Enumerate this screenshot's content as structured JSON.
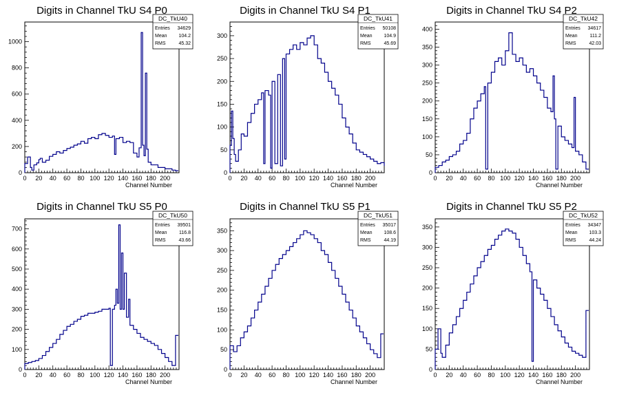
{
  "chart_data": [
    {
      "type": "histogram",
      "title": "Digits in Channel TkU S4 P0",
      "xlabel": "Channel Number",
      "xlim": [
        0,
        220
      ],
      "ylim": [
        0,
        1150
      ],
      "xticks": [
        0,
        20,
        40,
        60,
        80,
        100,
        120,
        140,
        160,
        180,
        200
      ],
      "yticks": [
        0,
        200,
        400,
        600,
        800,
        1000
      ],
      "stats": {
        "name": "DC_TkU40",
        "entries": "34629",
        "mean": "104.2",
        "rms": "45.32"
      },
      "points": [
        [
          0,
          70
        ],
        [
          4,
          120
        ],
        [
          8,
          40
        ],
        [
          10,
          20
        ],
        [
          13,
          60
        ],
        [
          17,
          75
        ],
        [
          20,
          100
        ],
        [
          22,
          110
        ],
        [
          25,
          80
        ],
        [
          30,
          95
        ],
        [
          35,
          125
        ],
        [
          40,
          140
        ],
        [
          45,
          160
        ],
        [
          50,
          150
        ],
        [
          55,
          170
        ],
        [
          60,
          185
        ],
        [
          65,
          195
        ],
        [
          70,
          210
        ],
        [
          75,
          220
        ],
        [
          80,
          240
        ],
        [
          85,
          225
        ],
        [
          90,
          260
        ],
        [
          95,
          270
        ],
        [
          100,
          260
        ],
        [
          105,
          290
        ],
        [
          110,
          300
        ],
        [
          115,
          285
        ],
        [
          120,
          270
        ],
        [
          125,
          280
        ],
        [
          128,
          140
        ],
        [
          130,
          260
        ],
        [
          135,
          270
        ],
        [
          140,
          230
        ],
        [
          145,
          240
        ],
        [
          150,
          230
        ],
        [
          155,
          150
        ],
        [
          160,
          120
        ],
        [
          163,
          190
        ],
        [
          166,
          1070
        ],
        [
          168,
          210
        ],
        [
          170,
          130
        ],
        [
          172,
          760
        ],
        [
          174,
          180
        ],
        [
          176,
          80
        ],
        [
          180,
          60
        ],
        [
          190,
          40
        ],
        [
          200,
          30
        ],
        [
          210,
          20
        ],
        [
          215,
          15
        ]
      ],
      "color": "#00008b"
    },
    {
      "type": "histogram",
      "title": "Digits in Channel TkU S4 P1",
      "xlabel": "Channel Number",
      "xlim": [
        0,
        220
      ],
      "ylim": [
        0,
        330
      ],
      "xticks": [
        0,
        20,
        40,
        60,
        80,
        100,
        120,
        140,
        160,
        180,
        200
      ],
      "yticks": [
        0,
        50,
        100,
        150,
        200,
        250,
        300
      ],
      "stats": {
        "name": "DC_TkU41",
        "entries": "50108",
        "mean": "104.9",
        "rms": "45.69"
      },
      "points": [
        [
          0,
          60
        ],
        [
          2,
          135
        ],
        [
          4,
          75
        ],
        [
          6,
          40
        ],
        [
          8,
          25
        ],
        [
          12,
          50
        ],
        [
          16,
          85
        ],
        [
          20,
          80
        ],
        [
          25,
          110
        ],
        [
          30,
          130
        ],
        [
          35,
          150
        ],
        [
          40,
          160
        ],
        [
          45,
          175
        ],
        [
          48,
          20
        ],
        [
          50,
          180
        ],
        [
          55,
          170
        ],
        [
          58,
          10
        ],
        [
          60,
          200
        ],
        [
          64,
          20
        ],
        [
          68,
          215
        ],
        [
          72,
          15
        ],
        [
          75,
          250
        ],
        [
          78,
          30
        ],
        [
          80,
          260
        ],
        [
          85,
          270
        ],
        [
          90,
          280
        ],
        [
          95,
          270
        ],
        [
          100,
          285
        ],
        [
          105,
          280
        ],
        [
          110,
          295
        ],
        [
          115,
          300
        ],
        [
          120,
          280
        ],
        [
          125,
          250
        ],
        [
          130,
          240
        ],
        [
          135,
          220
        ],
        [
          140,
          200
        ],
        [
          145,
          185
        ],
        [
          150,
          170
        ],
        [
          155,
          150
        ],
        [
          160,
          120
        ],
        [
          165,
          100
        ],
        [
          170,
          85
        ],
        [
          175,
          65
        ],
        [
          180,
          50
        ],
        [
          185,
          45
        ],
        [
          190,
          40
        ],
        [
          195,
          35
        ],
        [
          200,
          30
        ],
        [
          205,
          25
        ],
        [
          210,
          20
        ],
        [
          215,
          22
        ],
        [
          220,
          15
        ]
      ],
      "color": "#00008b"
    },
    {
      "type": "histogram",
      "title": "Digits in Channel TkU S4 P2",
      "xlabel": "Channel Number",
      "xlim": [
        0,
        220
      ],
      "ylim": [
        0,
        420
      ],
      "xticks": [
        0,
        20,
        40,
        60,
        80,
        100,
        120,
        140,
        160,
        180,
        200
      ],
      "yticks": [
        0,
        50,
        100,
        150,
        200,
        250,
        300,
        350,
        400
      ],
      "stats": {
        "name": "DC_TkU42",
        "entries": "34617",
        "mean": "111.2",
        "rms": "42.03"
      },
      "points": [
        [
          0,
          15
        ],
        [
          5,
          20
        ],
        [
          10,
          30
        ],
        [
          15,
          35
        ],
        [
          20,
          45
        ],
        [
          25,
          50
        ],
        [
          30,
          60
        ],
        [
          35,
          80
        ],
        [
          40,
          90
        ],
        [
          45,
          110
        ],
        [
          50,
          150
        ],
        [
          55,
          180
        ],
        [
          60,
          200
        ],
        [
          65,
          220
        ],
        [
          70,
          240
        ],
        [
          72,
          10
        ],
        [
          75,
          250
        ],
        [
          80,
          280
        ],
        [
          85,
          310
        ],
        [
          90,
          320
        ],
        [
          95,
          300
        ],
        [
          100,
          340
        ],
        [
          105,
          390
        ],
        [
          110,
          330
        ],
        [
          115,
          310
        ],
        [
          120,
          320
        ],
        [
          125,
          300
        ],
        [
          130,
          280
        ],
        [
          135,
          290
        ],
        [
          140,
          270
        ],
        [
          145,
          250
        ],
        [
          150,
          230
        ],
        [
          155,
          210
        ],
        [
          160,
          180
        ],
        [
          165,
          170
        ],
        [
          168,
          270
        ],
        [
          170,
          150
        ],
        [
          172,
          10
        ],
        [
          175,
          130
        ],
        [
          180,
          100
        ],
        [
          185,
          90
        ],
        [
          190,
          80
        ],
        [
          195,
          70
        ],
        [
          198,
          210
        ],
        [
          200,
          60
        ],
        [
          205,
          50
        ],
        [
          210,
          30
        ],
        [
          215,
          10
        ]
      ],
      "color": "#00008b"
    },
    {
      "type": "histogram",
      "title": "Digits in Channel TkU S5 P0",
      "xlabel": "Channel Number",
      "xlim": [
        0,
        220
      ],
      "ylim": [
        0,
        750
      ],
      "xticks": [
        0,
        20,
        40,
        60,
        80,
        100,
        120,
        140,
        160,
        180,
        200
      ],
      "yticks": [
        0,
        100,
        200,
        300,
        400,
        500,
        600,
        700
      ],
      "stats": {
        "name": "DC_TkU50",
        "entries": "39501",
        "mean": "116.8",
        "rms": "43.66"
      },
      "points": [
        [
          0,
          30
        ],
        [
          5,
          35
        ],
        [
          10,
          40
        ],
        [
          15,
          45
        ],
        [
          20,
          55
        ],
        [
          25,
          70
        ],
        [
          30,
          90
        ],
        [
          35,
          110
        ],
        [
          40,
          130
        ],
        [
          45,
          150
        ],
        [
          50,
          175
        ],
        [
          55,
          195
        ],
        [
          60,
          215
        ],
        [
          65,
          225
        ],
        [
          70,
          240
        ],
        [
          75,
          250
        ],
        [
          80,
          265
        ],
        [
          85,
          270
        ],
        [
          90,
          280
        ],
        [
          95,
          280
        ],
        [
          100,
          285
        ],
        [
          105,
          290
        ],
        [
          110,
          300
        ],
        [
          115,
          300
        ],
        [
          120,
          305
        ],
        [
          122,
          20
        ],
        [
          125,
          300
        ],
        [
          128,
          320
        ],
        [
          130,
          400
        ],
        [
          132,
          330
        ],
        [
          134,
          720
        ],
        [
          136,
          300
        ],
        [
          138,
          580
        ],
        [
          140,
          300
        ],
        [
          142,
          480
        ],
        [
          145,
          260
        ],
        [
          148,
          350
        ],
        [
          150,
          220
        ],
        [
          155,
          200
        ],
        [
          160,
          180
        ],
        [
          165,
          160
        ],
        [
          170,
          150
        ],
        [
          175,
          140
        ],
        [
          180,
          130
        ],
        [
          185,
          120
        ],
        [
          190,
          100
        ],
        [
          195,
          80
        ],
        [
          200,
          60
        ],
        [
          205,
          40
        ],
        [
          210,
          20
        ],
        [
          215,
          170
        ]
      ],
      "color": "#00008b"
    },
    {
      "type": "histogram",
      "title": "Digits in Channel TkU S5 P1",
      "xlabel": "Channel Number",
      "xlim": [
        0,
        220
      ],
      "ylim": [
        0,
        380
      ],
      "xticks": [
        0,
        20,
        40,
        60,
        80,
        100,
        120,
        140,
        160,
        180,
        200
      ],
      "yticks": [
        0,
        50,
        100,
        150,
        200,
        250,
        300,
        350
      ],
      "stats": {
        "name": "DC_TkU51",
        "entries": "35017",
        "mean": "108.6",
        "rms": "44.19"
      },
      "points": [
        [
          0,
          60
        ],
        [
          5,
          45
        ],
        [
          10,
          60
        ],
        [
          15,
          80
        ],
        [
          20,
          95
        ],
        [
          25,
          110
        ],
        [
          30,
          130
        ],
        [
          35,
          150
        ],
        [
          40,
          170
        ],
        [
          45,
          190
        ],
        [
          50,
          210
        ],
        [
          55,
          230
        ],
        [
          60,
          250
        ],
        [
          65,
          265
        ],
        [
          70,
          280
        ],
        [
          75,
          290
        ],
        [
          80,
          300
        ],
        [
          85,
          310
        ],
        [
          90,
          320
        ],
        [
          95,
          330
        ],
        [
          100,
          340
        ],
        [
          105,
          350
        ],
        [
          110,
          345
        ],
        [
          115,
          340
        ],
        [
          120,
          330
        ],
        [
          125,
          320
        ],
        [
          130,
          300
        ],
        [
          135,
          290
        ],
        [
          140,
          270
        ],
        [
          145,
          250
        ],
        [
          150,
          230
        ],
        [
          155,
          210
        ],
        [
          160,
          190
        ],
        [
          165,
          170
        ],
        [
          170,
          150
        ],
        [
          175,
          130
        ],
        [
          180,
          110
        ],
        [
          185,
          95
        ],
        [
          190,
          80
        ],
        [
          195,
          65
        ],
        [
          200,
          50
        ],
        [
          205,
          40
        ],
        [
          210,
          30
        ],
        [
          215,
          90
        ]
      ],
      "color": "#00008b"
    },
    {
      "type": "histogram",
      "title": "Digits in Channel TkU S5 P2",
      "xlabel": "Channel Number",
      "xlim": [
        0,
        220
      ],
      "ylim": [
        0,
        370
      ],
      "xticks": [
        0,
        20,
        40,
        60,
        80,
        100,
        120,
        140,
        160,
        180,
        200
      ],
      "yticks": [
        0,
        50,
        100,
        150,
        200,
        250,
        300,
        350
      ],
      "stats": {
        "name": "DC_TkU52",
        "entries": "34347",
        "mean": "103.3",
        "rms": "44.24"
      },
      "points": [
        [
          0,
          50
        ],
        [
          4,
          100
        ],
        [
          8,
          40
        ],
        [
          10,
          30
        ],
        [
          15,
          60
        ],
        [
          20,
          90
        ],
        [
          25,
          110
        ],
        [
          30,
          130
        ],
        [
          35,
          150
        ],
        [
          40,
          170
        ],
        [
          45,
          190
        ],
        [
          50,
          210
        ],
        [
          55,
          230
        ],
        [
          60,
          250
        ],
        [
          65,
          265
        ],
        [
          70,
          280
        ],
        [
          75,
          295
        ],
        [
          80,
          305
        ],
        [
          85,
          320
        ],
        [
          90,
          330
        ],
        [
          95,
          340
        ],
        [
          100,
          345
        ],
        [
          105,
          340
        ],
        [
          110,
          335
        ],
        [
          115,
          320
        ],
        [
          120,
          300
        ],
        [
          125,
          280
        ],
        [
          130,
          260
        ],
        [
          135,
          240
        ],
        [
          138,
          20
        ],
        [
          140,
          220
        ],
        [
          145,
          200
        ],
        [
          150,
          185
        ],
        [
          155,
          170
        ],
        [
          160,
          150
        ],
        [
          165,
          130
        ],
        [
          170,
          110
        ],
        [
          175,
          95
        ],
        [
          180,
          80
        ],
        [
          185,
          65
        ],
        [
          190,
          55
        ],
        [
          195,
          45
        ],
        [
          200,
          40
        ],
        [
          205,
          35
        ],
        [
          210,
          30
        ],
        [
          215,
          145
        ]
      ],
      "color": "#00008b"
    }
  ]
}
